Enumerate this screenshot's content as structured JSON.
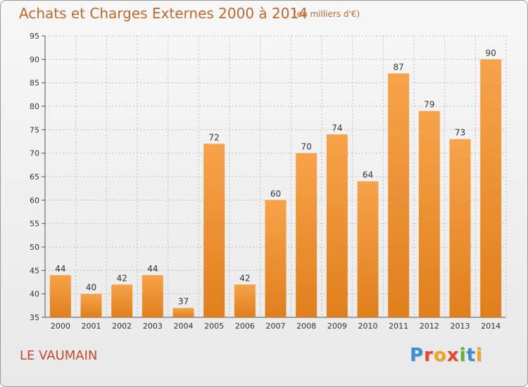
{
  "header": {
    "title": "Achats et Charges Externes 2000 à 2014",
    "unit": "(en milliers d'€)"
  },
  "footer": {
    "commune": "LE VAUMAIN",
    "brand": "Proxiti",
    "brand_colors": [
      "#3a8fd6",
      "#e8462e",
      "#f2a51a",
      "#e8462e",
      "#5cb531",
      "#3a8fd6",
      "#f2a51a"
    ]
  },
  "colors": {
    "bar_light": "#f7a34a",
    "bar_dark": "#e07f1c",
    "title": "#c0692a",
    "commune": "#c9462e",
    "grid": "#bcbcbc"
  },
  "chart_data": {
    "type": "bar",
    "categories": [
      "2000",
      "2001",
      "2002",
      "2003",
      "2004",
      "2005",
      "2006",
      "2007",
      "2008",
      "2009",
      "2010",
      "2011",
      "2012",
      "2013",
      "2014"
    ],
    "values": [
      44,
      40,
      42,
      44,
      37,
      72,
      42,
      60,
      70,
      74,
      64,
      87,
      79,
      73,
      90
    ],
    "title": "Achats et Charges Externes 2000 à 2014",
    "xlabel": "",
    "ylabel": "",
    "ylim": [
      35,
      95
    ],
    "yticks": [
      35,
      40,
      45,
      50,
      55,
      60,
      65,
      70,
      75,
      80,
      85,
      90,
      95
    ],
    "grid": true,
    "data_labels": true
  }
}
